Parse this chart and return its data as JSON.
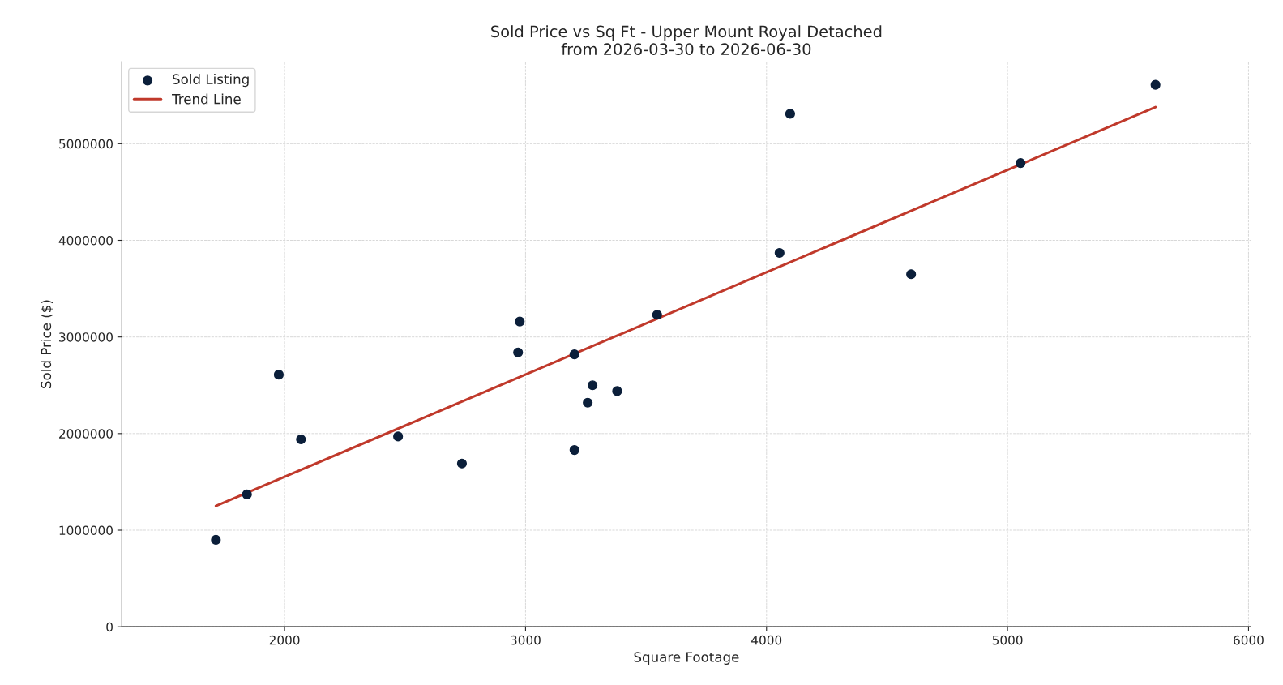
{
  "chart_data": {
    "type": "scatter",
    "title": "Sold Price vs Sq Ft - Upper Mount Royal Detached\nfrom 2026-03-30 to 2026-06-30",
    "xlabel": "Square Footage",
    "ylabel": "Sold Price ($)",
    "xlim": [
      1325,
      6010
    ],
    "xticks": [
      2000,
      3000,
      4000,
      5000,
      6000
    ],
    "ylim": [
      0,
      5850000
    ],
    "yticks": [
      0,
      1000000,
      2000000,
      3000000,
      4000000,
      5000000
    ],
    "grid": true,
    "legend": "top left",
    "series": [
      {
        "name": "Sold Listing",
        "marker": "circle",
        "color": "#0b1f3a",
        "x": [
          1715,
          1844,
          1976,
          2068,
          2471,
          2736,
          2969,
          2976,
          3203,
          3203,
          3258,
          3278,
          3380,
          3546,
          4054,
          4098,
          4600,
          5054,
          5614
        ],
        "values": [
          900000,
          1370000,
          2610000,
          1940000,
          1970000,
          1690000,
          2840000,
          3160000,
          2820000,
          1830000,
          2320000,
          2500000,
          2440000,
          3230000,
          3870000,
          5310000,
          3650000,
          4800000,
          5610000
        ]
      },
      {
        "name": "Trend Line",
        "type": "line",
        "color": "#c0392b",
        "x": [
          1715,
          5614
        ],
        "values": [
          1250000,
          5380000
        ]
      }
    ]
  }
}
